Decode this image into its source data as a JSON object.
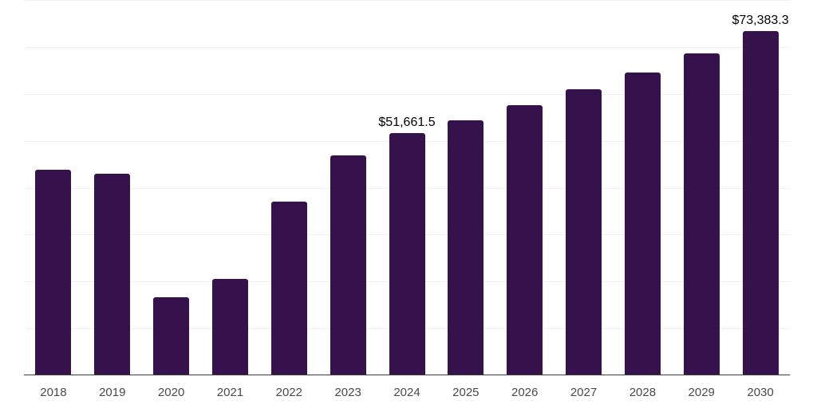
{
  "chart_data": {
    "type": "bar",
    "title": "",
    "xlabel": "",
    "ylabel": "",
    "categories": [
      "2018",
      "2019",
      "2020",
      "2021",
      "2022",
      "2023",
      "2024",
      "2025",
      "2026",
      "2027",
      "2028",
      "2029",
      "2030"
    ],
    "values": [
      43900,
      43000,
      16600,
      20500,
      37000,
      46800,
      51661.5,
      54400,
      57600,
      60900,
      64600,
      68700,
      73383.3
    ],
    "data_labels": [
      {
        "category": "2024",
        "text": "$51,661.5"
      },
      {
        "category": "2030",
        "text": "$73,383.3"
      }
    ],
    "ylim": [
      0,
      80000
    ],
    "gridline_step": 10000,
    "grid": "horizontal-only",
    "legend": "none",
    "y_tick_labels_visible": false,
    "colors": {
      "bar": "#36124C",
      "gridline": "#f2f2f2",
      "axis_line": "#3d3d3d",
      "x_tick_label": "#4a4a4a",
      "data_label": "#000000",
      "background": "#ffffff"
    }
  }
}
